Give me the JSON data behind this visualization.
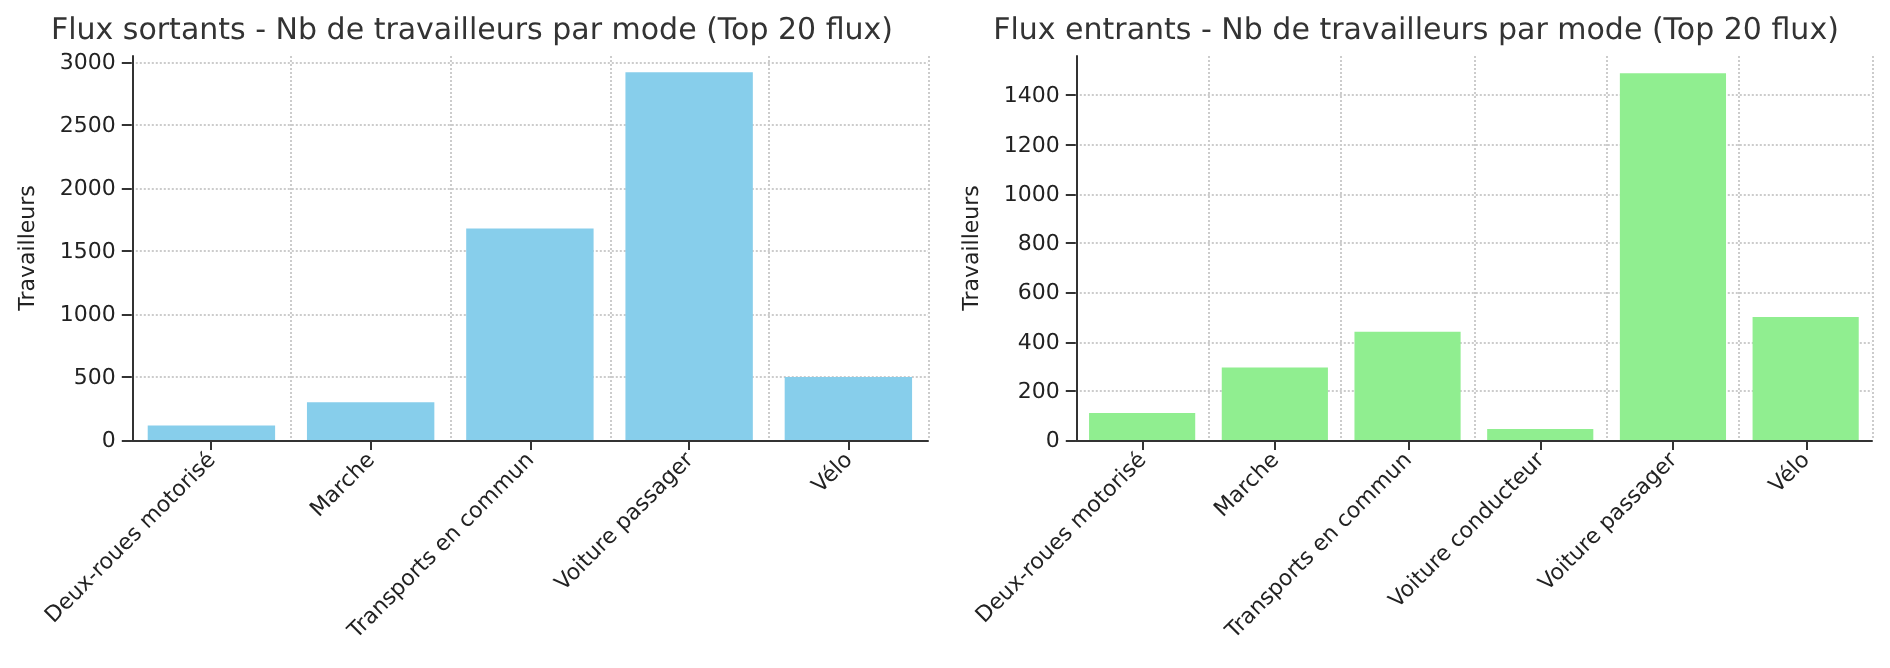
{
  "chart_data": [
    {
      "type": "bar",
      "title": "Flux sortants - Nb de travailleurs par mode (Top 20 flux)",
      "ylabel": "Travailleurs",
      "categories": [
        "Deux-roues motorisé",
        "Marche",
        "Transports en commun",
        "Voiture passager",
        "Vélo"
      ],
      "values": [
        115,
        300,
        1680,
        2920,
        500
      ],
      "color": "#87ceeb",
      "ylim": [
        0,
        3050
      ],
      "yticks": [
        0,
        500,
        1000,
        1500,
        2000,
        2500,
        3000
      ],
      "grid": true
    },
    {
      "type": "bar",
      "title": "Flux entrants - Nb de travailleurs par mode (Top 20 flux)",
      "ylabel": "Travailleurs",
      "categories": [
        "Deux-roues motorisé",
        "Marche",
        "Transports en commun",
        "Voiture conducteur",
        "Voiture passager",
        "Vélo"
      ],
      "values": [
        110,
        295,
        440,
        45,
        1490,
        500
      ],
      "color": "#90ee90",
      "ylim": [
        0,
        1560
      ],
      "yticks": [
        0,
        200,
        400,
        600,
        800,
        1000,
        1200,
        1400
      ],
      "grid": true
    }
  ]
}
